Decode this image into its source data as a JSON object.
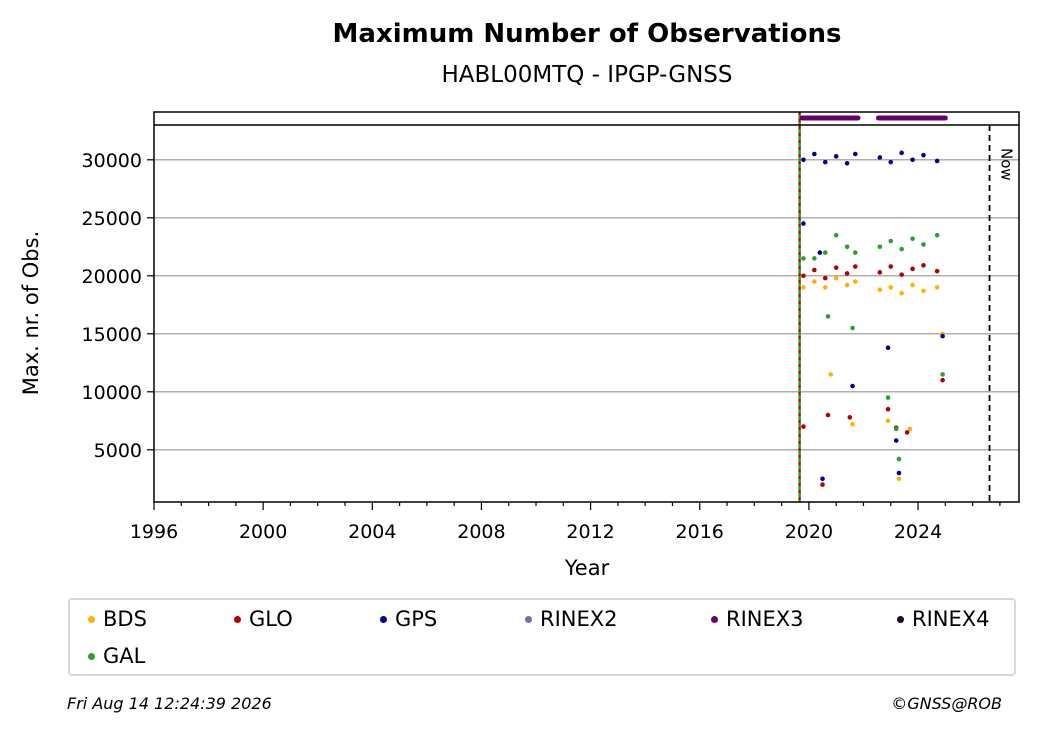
{
  "chart_data": {
    "type": "scatter",
    "title": "Maximum Number of Observations",
    "subtitle": "HABL00MTQ - IPGP-GNSS",
    "xlabel": "Year",
    "ylabel": "Max. nr. of Obs.",
    "xlim": [
      1996,
      2027.7
    ],
    "ylim": [
      500,
      33000
    ],
    "xticks": [
      1996,
      2000,
      2004,
      2008,
      2012,
      2016,
      2020,
      2024
    ],
    "yticks": [
      5000,
      10000,
      15000,
      20000,
      25000,
      30000
    ],
    "grid": "horizontal",
    "legend_position": "bottom",
    "now_label": "Now",
    "now_year": 2026.62,
    "start_marker_year": 2019.66,
    "series": [
      {
        "name": "BDS",
        "color": "#ffb300",
        "points": [
          [
            2019.8,
            19000
          ],
          [
            2020.2,
            19500
          ],
          [
            2020.6,
            19000
          ],
          [
            2021.0,
            19800
          ],
          [
            2021.4,
            19200
          ],
          [
            2021.7,
            19500
          ],
          [
            2022.6,
            18800
          ],
          [
            2023.0,
            19000
          ],
          [
            2023.4,
            18500
          ],
          [
            2023.8,
            19200
          ],
          [
            2024.2,
            18700
          ],
          [
            2024.7,
            19000
          ],
          [
            2020.8,
            11500
          ],
          [
            2021.6,
            7200
          ],
          [
            2022.9,
            7500
          ],
          [
            2023.3,
            2500
          ],
          [
            2023.7,
            6800
          ],
          [
            2024.9,
            15000
          ]
        ]
      },
      {
        "name": "GLO",
        "color": "#b30000",
        "points": [
          [
            2019.8,
            20000
          ],
          [
            2020.2,
            20500
          ],
          [
            2020.6,
            19800
          ],
          [
            2021.0,
            20700
          ],
          [
            2021.4,
            20200
          ],
          [
            2021.7,
            20800
          ],
          [
            2022.6,
            20300
          ],
          [
            2023.0,
            20800
          ],
          [
            2023.4,
            20100
          ],
          [
            2023.8,
            20600
          ],
          [
            2024.2,
            20900
          ],
          [
            2024.7,
            20400
          ],
          [
            2019.8,
            7000
          ],
          [
            2020.5,
            2000
          ],
          [
            2020.7,
            8000
          ],
          [
            2021.5,
            7800
          ],
          [
            2022.9,
            8500
          ],
          [
            2023.2,
            6900
          ],
          [
            2023.6,
            6500
          ],
          [
            2024.9,
            11000
          ]
        ]
      },
      {
        "name": "GPS",
        "color": "#000099",
        "points": [
          [
            2019.8,
            30000
          ],
          [
            2020.2,
            30500
          ],
          [
            2020.6,
            29800
          ],
          [
            2021.0,
            30300
          ],
          [
            2021.4,
            29700
          ],
          [
            2021.7,
            30500
          ],
          [
            2022.6,
            30200
          ],
          [
            2023.0,
            29800
          ],
          [
            2023.4,
            30600
          ],
          [
            2023.8,
            30000
          ],
          [
            2024.2,
            30400
          ],
          [
            2024.7,
            29900
          ],
          [
            2019.8,
            24500
          ],
          [
            2020.4,
            22000
          ],
          [
            2020.5,
            2500
          ],
          [
            2021.6,
            10500
          ],
          [
            2022.9,
            13800
          ],
          [
            2023.2,
            5800
          ],
          [
            2023.3,
            3000
          ],
          [
            2024.9,
            14800
          ]
        ]
      },
      {
        "name": "RINEX2",
        "color": "#7b68b6",
        "points": []
      },
      {
        "name": "RINEX3",
        "color": "#6a0066",
        "ranges": [
          [
            2019.75,
            2021.8
          ],
          [
            2022.55,
            2025.0
          ]
        ]
      },
      {
        "name": "RINEX4",
        "color": "#2a0020",
        "points": []
      },
      {
        "name": "GAL",
        "color": "#2ca02c",
        "points": [
          [
            2019.8,
            21500
          ],
          [
            2020.2,
            21500
          ],
          [
            2020.6,
            22000
          ],
          [
            2021.0,
            23500
          ],
          [
            2021.4,
            22500
          ],
          [
            2021.7,
            22000
          ],
          [
            2022.6,
            22500
          ],
          [
            2023.0,
            23000
          ],
          [
            2023.4,
            22300
          ],
          [
            2023.8,
            23200
          ],
          [
            2024.2,
            22700
          ],
          [
            2024.7,
            23500
          ],
          [
            2020.7,
            16500
          ],
          [
            2021.6,
            15500
          ],
          [
            2022.9,
            9500
          ],
          [
            2023.2,
            6800
          ],
          [
            2023.3,
            4200
          ],
          [
            2024.9,
            11500
          ]
        ]
      }
    ]
  },
  "footer": {
    "timestamp": "Fri Aug 14 12:24:39 2026",
    "credit": "©GNSS@ROB"
  }
}
